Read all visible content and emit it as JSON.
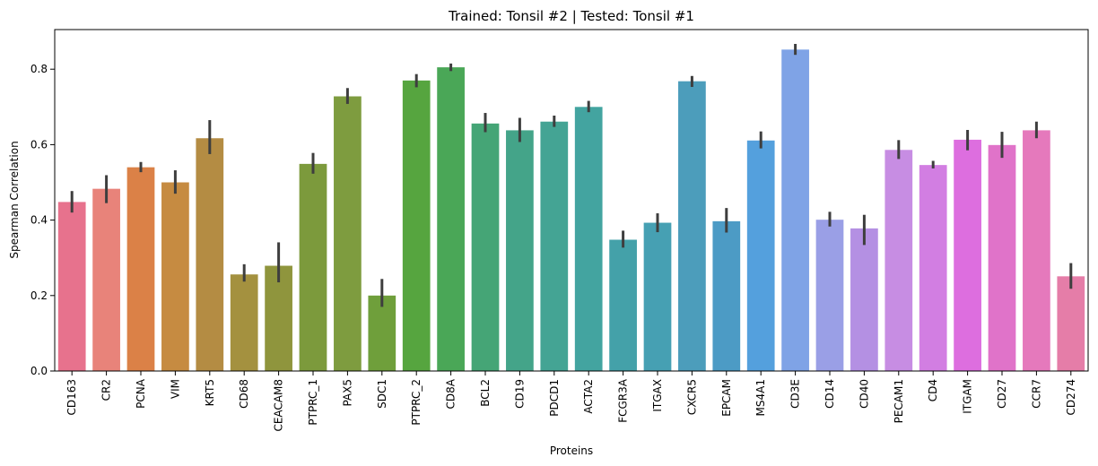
{
  "chart_data": {
    "type": "bar",
    "title": "Trained: Tonsil #2 | Tested: Tonsil #1",
    "xlabel": "Proteins",
    "ylabel": "Spearman Correlation",
    "ylim": [
      0,
      0.905
    ],
    "yticks": [
      "0.0",
      "0.2",
      "0.4",
      "0.6",
      "0.8"
    ],
    "grid": false,
    "categories": [
      "CD163",
      "CR2",
      "PCNA",
      "VIM",
      "KRT5",
      "CD68",
      "CEACAM8",
      "PTPRC_1",
      "PAX5",
      "SDC1",
      "PTPRC_2",
      "CD8A",
      "BCL2",
      "CD19",
      "PDCD1",
      "ACTA2",
      "FCGR3A",
      "ITGAX",
      "CXCR5",
      "EPCAM",
      "MS4A1",
      "CD3E",
      "CD14",
      "CD40",
      "PECAM1",
      "CD4",
      "ITGAM",
      "CD27",
      "CCR7",
      "CD274"
    ],
    "values": [
      0.448,
      0.483,
      0.54,
      0.5,
      0.617,
      0.256,
      0.279,
      0.549,
      0.728,
      0.2,
      0.77,
      0.805,
      0.656,
      0.638,
      0.661,
      0.7,
      0.348,
      0.393,
      0.768,
      0.397,
      0.611,
      0.852,
      0.401,
      0.378,
      0.586,
      0.546,
      0.613,
      0.599,
      0.638,
      0.251
    ],
    "err_low": [
      0.42,
      0.445,
      0.527,
      0.47,
      0.575,
      0.237,
      0.235,
      0.523,
      0.708,
      0.17,
      0.752,
      0.795,
      0.633,
      0.607,
      0.647,
      0.686,
      0.327,
      0.368,
      0.753,
      0.367,
      0.59,
      0.838,
      0.383,
      0.334,
      0.562,
      0.537,
      0.585,
      0.565,
      0.617,
      0.218
    ],
    "err_high": [
      0.477,
      0.519,
      0.554,
      0.532,
      0.665,
      0.283,
      0.341,
      0.578,
      0.75,
      0.244,
      0.787,
      0.815,
      0.684,
      0.671,
      0.677,
      0.716,
      0.372,
      0.418,
      0.782,
      0.432,
      0.635,
      0.867,
      0.422,
      0.414,
      0.612,
      0.557,
      0.639,
      0.634,
      0.661,
      0.286
    ],
    "colors": [
      "#E7728D",
      "#E8837A",
      "#DB8147",
      "#C68B41",
      "#B48C43",
      "#A4913F",
      "#8F953D",
      "#7C9A3C",
      "#7E9C3F",
      "#6F9F3B",
      "#56A53F",
      "#4AA757",
      "#45A576",
      "#44A489",
      "#44A494",
      "#43A4A0",
      "#44A1A9",
      "#46A0B3",
      "#4C9DBB",
      "#4C9BC5",
      "#54A0DD",
      "#7FA3E6",
      "#9A9FE6",
      "#B490E3",
      "#C78DE3",
      "#D27EE2",
      "#DD6EDF",
      "#E073C9",
      "#E579BC",
      "#E57DA8"
    ],
    "error_color": "#3e3e3e"
  }
}
